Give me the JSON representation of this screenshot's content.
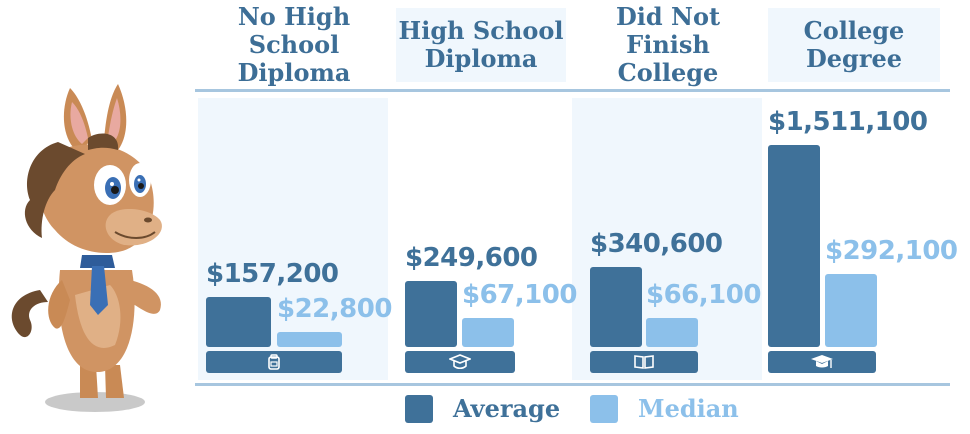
{
  "chart_data": {
    "type": "bar",
    "categories": [
      "No High School\nDiploma",
      "High School\nDiploma",
      "Did Not Finish\nCollege",
      "College\nDegree"
    ],
    "series": [
      {
        "name": "Average",
        "values": [
          157200,
          249600,
          340600,
          1511100
        ],
        "labels": [
          "$157,200",
          "$249,600",
          "$340,600",
          "$1,511,100"
        ],
        "color": "#3f7199"
      },
      {
        "name": "Median",
        "values": [
          22800,
          67100,
          66100,
          292100
        ],
        "labels": [
          "$22,800",
          "$67,100",
          "$66,100",
          "$292,100"
        ],
        "color": "#8cc0ea"
      }
    ],
    "icons": [
      "backpack-icon",
      "graduation-cap-icon",
      "open-book-icon",
      "mortarboard-icon"
    ],
    "ylim": [
      0,
      1511100
    ]
  },
  "legend": {
    "average_label": "Average",
    "median_label": "Median"
  },
  "colors": {
    "average": "#3f7199",
    "median": "#8cc0ea",
    "header_text": "#3d6e96",
    "column_bg": "#f0f7fd",
    "rule": "#a7c6df"
  }
}
